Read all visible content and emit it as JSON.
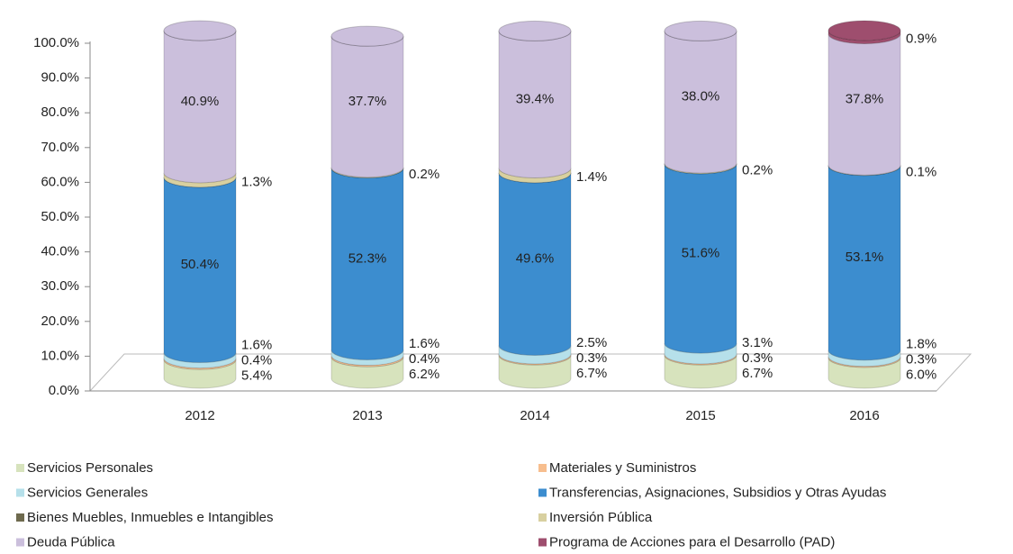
{
  "chart_data": {
    "type": "stacked_bar",
    "categories": [
      "2012",
      "2013",
      "2014",
      "2015",
      "2016"
    ],
    "ylim": [
      0,
      100
    ],
    "yticks": [
      {
        "value": 0,
        "label": "0.0%"
      },
      {
        "value": 10,
        "label": "10.0%"
      },
      {
        "value": 20,
        "label": "20.0%"
      },
      {
        "value": 30,
        "label": "30.0%"
      },
      {
        "value": 40,
        "label": "40.0%"
      },
      {
        "value": 50,
        "label": "50.0%"
      },
      {
        "value": 60,
        "label": "60.0%"
      },
      {
        "value": 70,
        "label": "70.0%"
      },
      {
        "value": 80,
        "label": "80.0%"
      },
      {
        "value": 90,
        "label": "90.0%"
      },
      {
        "value": 100,
        "label": "100.0%"
      }
    ],
    "series": [
      {
        "name": "Servicios Personales",
        "color": "#d7e3bd",
        "values": [
          5.4,
          6.2,
          6.7,
          6.7,
          6.0
        ],
        "value_labels": [
          "5.4%",
          "6.2%",
          "6.7%",
          "6.7%",
          "6.0%"
        ]
      },
      {
        "name": "Materiales y Suministros",
        "color": "#f7be8e",
        "values": [
          0.4,
          0.4,
          0.3,
          0.3,
          0.3
        ],
        "value_labels": [
          "0.4%",
          "0.4%",
          "0.3%",
          "0.3%",
          "0.3%"
        ]
      },
      {
        "name": "Servicios Generales",
        "color": "#b6e0ea",
        "values": [
          1.6,
          1.6,
          2.5,
          3.1,
          1.8
        ],
        "value_labels": [
          "1.6%",
          "1.6%",
          "2.5%",
          "3.1%",
          "1.8%"
        ]
      },
      {
        "name": "Transferencias, Asignaciones, Subsidios y Otras Ayudas",
        "color": "#3c8dcf",
        "values": [
          50.4,
          52.3,
          49.6,
          51.6,
          53.1
        ],
        "value_labels": [
          "50.4%",
          "52.3%",
          "49.6%",
          "51.6%",
          "53.1%"
        ]
      },
      {
        "name": "Bienes Muebles, Inmuebles e Intangibles",
        "color": "#6e6a4e",
        "values": [
          0,
          0,
          0,
          0,
          0
        ],
        "value_labels": [
          null,
          null,
          null,
          null,
          null
        ]
      },
      {
        "name": "Inversión Pública",
        "color": "#d8d0a0",
        "values": [
          1.3,
          0.2,
          1.4,
          0.2,
          0.1
        ],
        "value_labels": [
          "1.3%",
          "0.2%",
          "1.4%",
          "0.2%",
          "0.1%"
        ]
      },
      {
        "name": "Deuda Pública",
        "color": "#cbbfdc",
        "values": [
          40.9,
          37.7,
          39.4,
          38.0,
          37.8
        ],
        "value_labels": [
          "40.9%",
          "37.7%",
          "39.4%",
          "38.0%",
          "37.8%"
        ]
      },
      {
        "name": "Programa de Acciones para el Desarrollo (PAD)",
        "color": "#9e4e6e",
        "values": [
          0,
          0,
          0,
          0,
          0.9
        ],
        "value_labels": [
          null,
          null,
          null,
          null,
          "0.9%"
        ]
      }
    ]
  }
}
